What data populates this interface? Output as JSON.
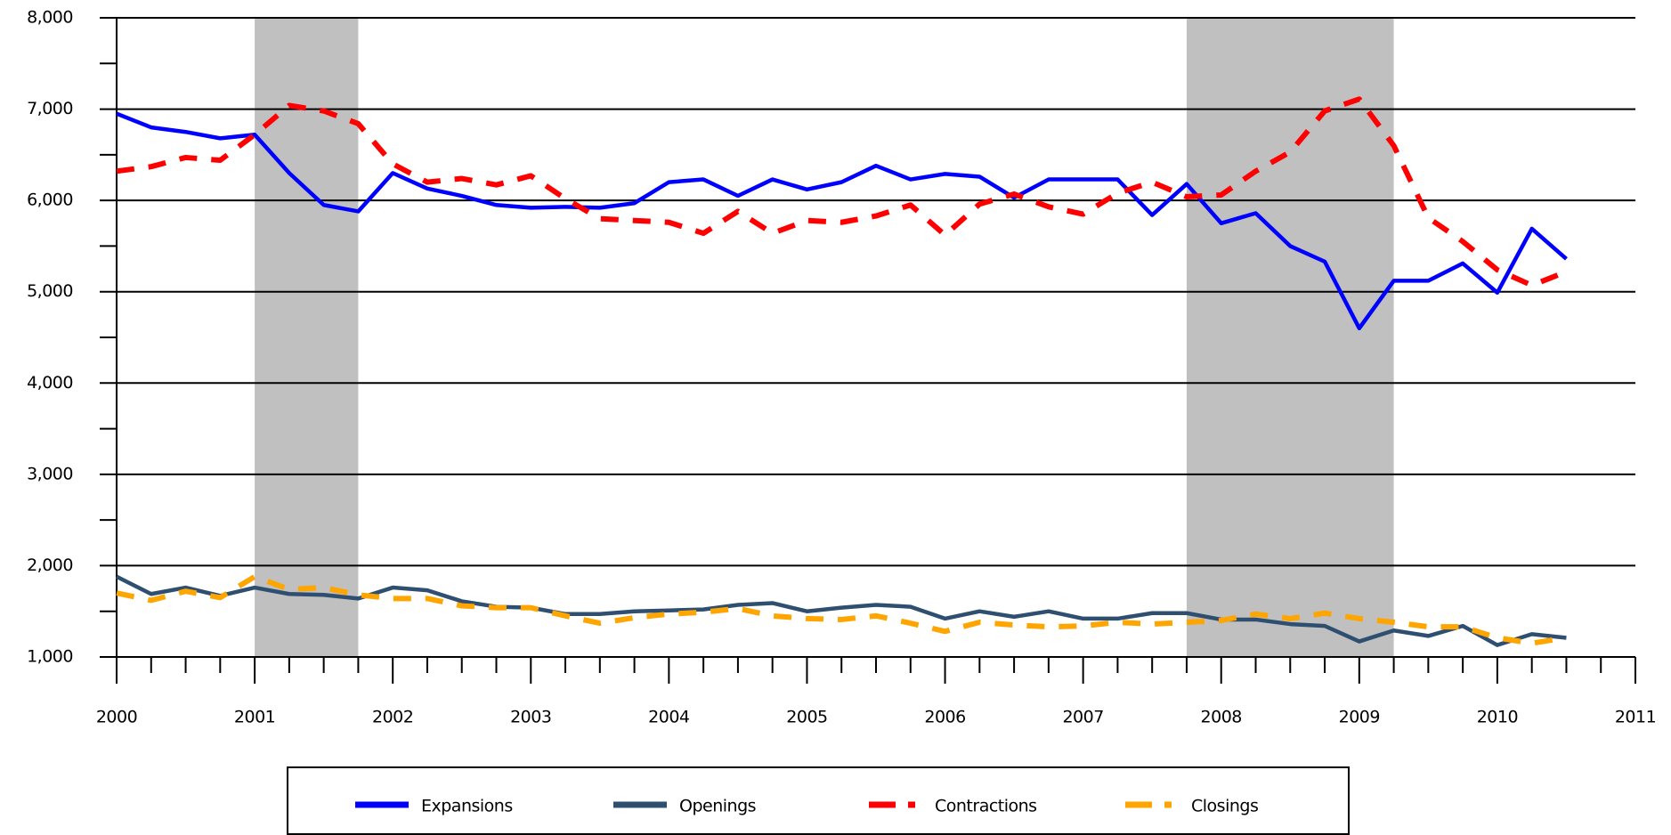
{
  "chart_data": {
    "type": "line",
    "x": [
      2000,
      2000.25,
      2000.5,
      2000.75,
      2001,
      2001.25,
      2001.5,
      2001.75,
      2002,
      2002.25,
      2002.5,
      2002.75,
      2003,
      2003.25,
      2003.5,
      2003.75,
      2004,
      2004.25,
      2004.5,
      2004.75,
      2005,
      2005.25,
      2005.5,
      2005.75,
      2006,
      2006.25,
      2006.5,
      2006.75,
      2007,
      2007.25,
      2007.5,
      2007.75,
      2008,
      2008.25,
      2008.5,
      2008.75,
      2009,
      2009.25,
      2009.5,
      2009.75,
      2010,
      2010.25,
      2010.5
    ],
    "series": [
      {
        "name": "Expansions",
        "color": "#0000ff",
        "style": "solid",
        "values": [
          6950,
          6800,
          6750,
          6680,
          6720,
          6300,
          5950,
          5880,
          6300,
          6130,
          6050,
          5950,
          5920,
          5930,
          5920,
          5970,
          6200,
          6230,
          6050,
          6230,
          6120,
          6200,
          6380,
          6230,
          6290,
          6260,
          6030,
          6230,
          6230,
          6230,
          5840,
          6180,
          5750,
          5860,
          5500,
          5330,
          4600,
          5120,
          5120,
          5310,
          4990,
          5690,
          5360
        ]
      },
      {
        "name": "Openings",
        "color": "#2f4f70",
        "style": "solid",
        "values": [
          1880,
          1690,
          1760,
          1670,
          1760,
          1690,
          1680,
          1640,
          1760,
          1730,
          1610,
          1550,
          1540,
          1470,
          1470,
          1500,
          1510,
          1520,
          1570,
          1590,
          1500,
          1540,
          1570,
          1550,
          1420,
          1500,
          1440,
          1500,
          1420,
          1420,
          1480,
          1480,
          1410,
          1410,
          1360,
          1340,
          1170,
          1290,
          1230,
          1340,
          1130,
          1250,
          1210
        ]
      },
      {
        "name": "Contractions",
        "color": "#ff0000",
        "style": "dashed",
        "values": [
          6320,
          6370,
          6470,
          6440,
          6720,
          7040,
          6980,
          6840,
          6400,
          6200,
          6240,
          6170,
          6270,
          6020,
          5800,
          5780,
          5760,
          5640,
          5880,
          5640,
          5780,
          5760,
          5830,
          5950,
          5620,
          5960,
          6070,
          5930,
          5850,
          6080,
          6200,
          6040,
          6060,
          6320,
          6530,
          6980,
          7110,
          6600,
          5810,
          5550,
          5240,
          5070,
          5220
        ]
      },
      {
        "name": "Closings",
        "color": "#ffa500",
        "style": "dashed",
        "values": [
          1700,
          1620,
          1720,
          1650,
          1880,
          1740,
          1760,
          1680,
          1640,
          1640,
          1560,
          1540,
          1540,
          1450,
          1370,
          1430,
          1470,
          1490,
          1530,
          1450,
          1420,
          1410,
          1450,
          1370,
          1280,
          1380,
          1350,
          1330,
          1340,
          1380,
          1360,
          1380,
          1400,
          1470,
          1420,
          1480,
          1420,
          1380,
          1330,
          1330,
          1210,
          1150,
          1210
        ]
      }
    ],
    "shaded_regions": [
      [
        2001,
        2001.75
      ],
      [
        2007.75,
        2009.25
      ]
    ],
    "shade_color": "#c0c0c0",
    "xlim": [
      2000,
      2011
    ],
    "xticks": [
      2000,
      2001,
      2002,
      2003,
      2004,
      2005,
      2006,
      2007,
      2008,
      2009,
      2010,
      2011
    ],
    "ylim": [
      1000,
      8000
    ],
    "yticks": [
      {
        "value": 1000,
        "label": "1,000"
      },
      {
        "value": 2000,
        "label": "2,000"
      },
      {
        "value": 3000,
        "label": "3,000"
      },
      {
        "value": 4000,
        "label": "4,000"
      },
      {
        "value": 5000,
        "label": "5,000"
      },
      {
        "value": 6000,
        "label": "6,000"
      },
      {
        "value": 7000,
        "label": "7,000"
      },
      {
        "value": 8000,
        "label": "8,000"
      }
    ],
    "grid": true,
    "legend": "bottom"
  }
}
